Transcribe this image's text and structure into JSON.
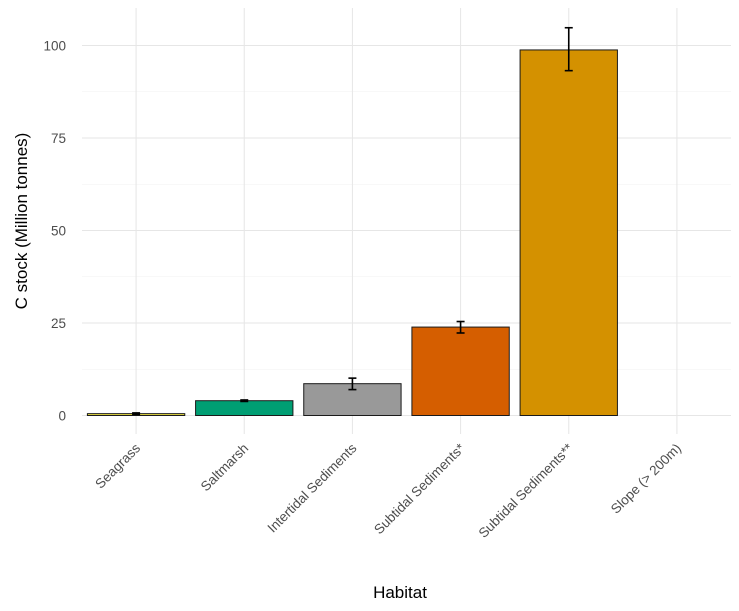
{
  "chart_data": {
    "type": "bar",
    "xlabel": "Habitat",
    "ylabel": "C stock (Million tonnes)",
    "ylim": [
      0,
      110
    ],
    "yticks": [
      0,
      25,
      50,
      75,
      100
    ],
    "grid": true,
    "categories": [
      "Seagrass",
      "Saltmarsh",
      "Intertidal Sediments",
      "Subtidal Sediments*",
      "Subtidal Sediments**",
      "Slope (> 200m)"
    ],
    "values": [
      0.5,
      4.0,
      8.6,
      23.9,
      98.8,
      0
    ],
    "error_low": [
      0.3,
      3.8,
      7.0,
      22.3,
      93.2,
      null
    ],
    "error_high": [
      0.7,
      4.2,
      10.1,
      25.4,
      104.8,
      null
    ],
    "colors": [
      "#F0E442",
      "#009E73",
      "#999999",
      "#D55E00",
      "#D49100",
      null
    ]
  }
}
